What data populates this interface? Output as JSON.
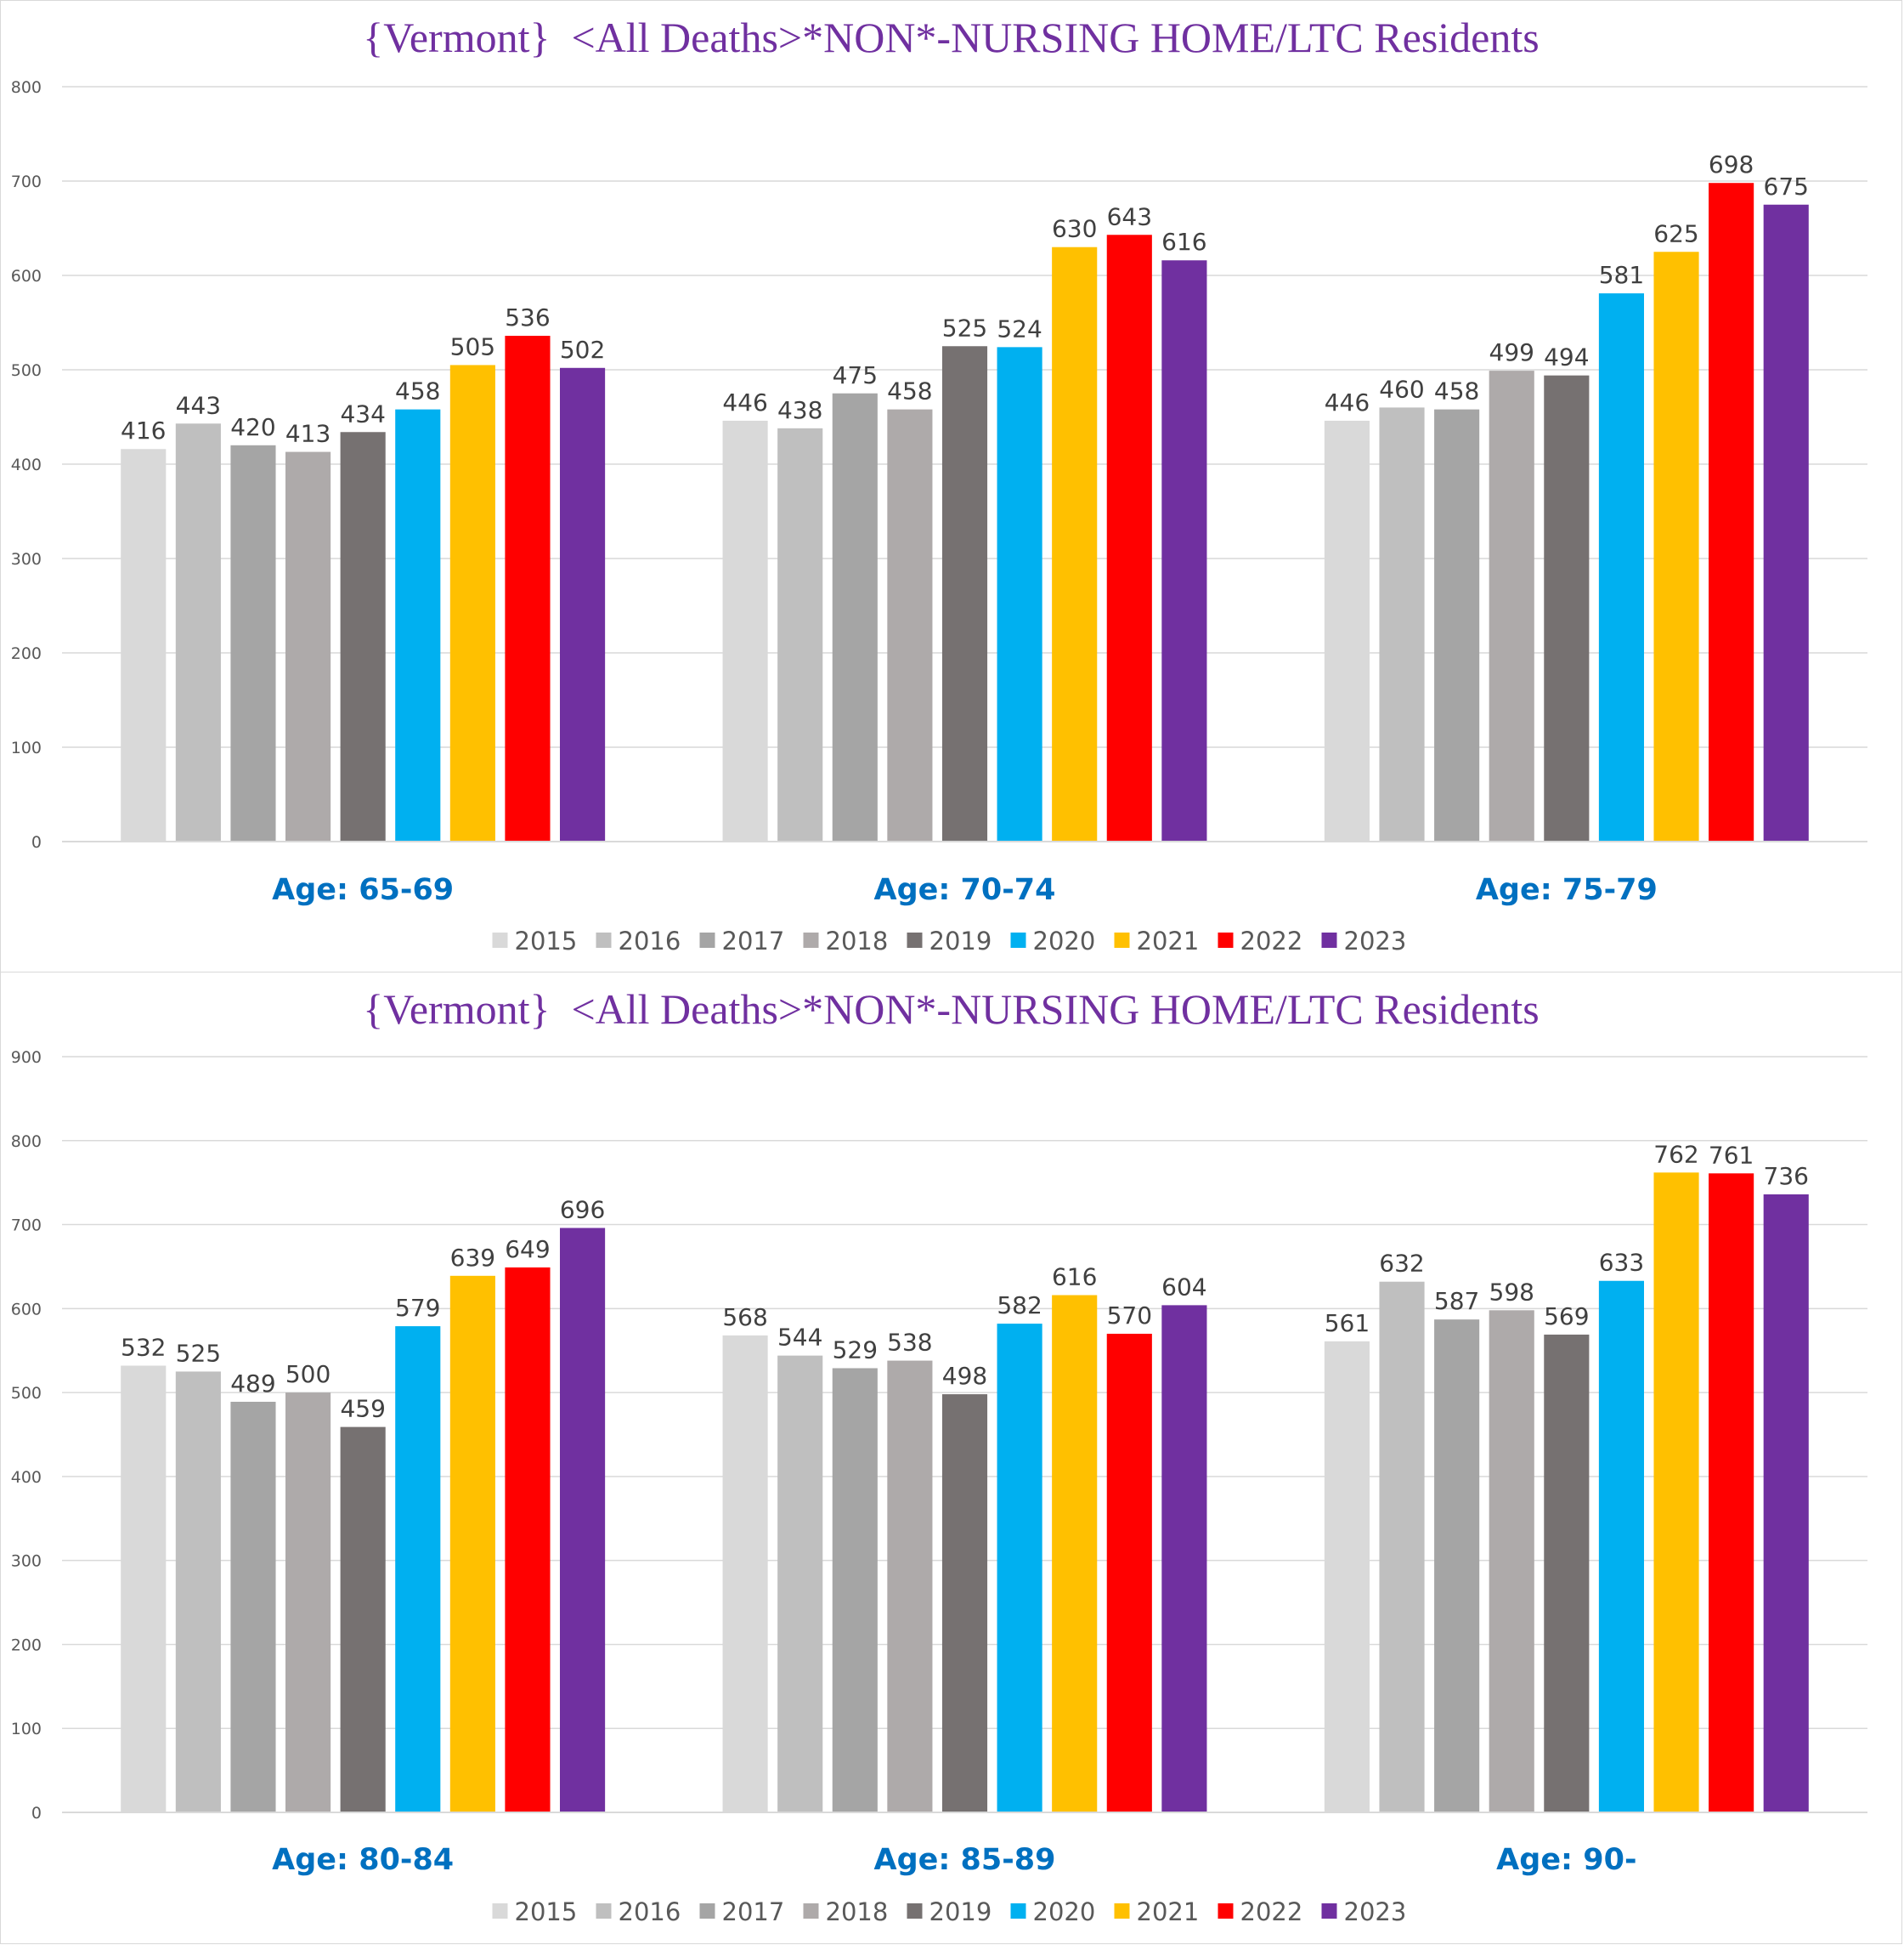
{
  "chart_data": [
    {
      "type": "bar",
      "title": "{Vermont}  <All Deaths>*NON*-NURSING HOME/LTC Residents",
      "xlabel": "",
      "ylabel": "",
      "ylim": [
        0,
        800
      ],
      "yticks": [
        0,
        100,
        200,
        300,
        400,
        500,
        600,
        700,
        800
      ],
      "grid": true,
      "legend_position": "bottom",
      "categories": [
        "Age: 65-69",
        "Age: 70-74",
        "Age: 75-79"
      ],
      "series": [
        {
          "name": "2015",
          "color": "#d9d9d9",
          "values": [
            416,
            446,
            446
          ]
        },
        {
          "name": "2016",
          "color": "#bfbfbf",
          "values": [
            443,
            438,
            460
          ]
        },
        {
          "name": "2017",
          "color": "#a5a5a5",
          "values": [
            420,
            475,
            458
          ]
        },
        {
          "name": "2018",
          "color": "#aeaaaa",
          "values": [
            413,
            458,
            499
          ]
        },
        {
          "name": "2019",
          "color": "#767171",
          "values": [
            434,
            525,
            494
          ]
        },
        {
          "name": "2020",
          "color": "#00b0f0",
          "values": [
            458,
            524,
            581
          ]
        },
        {
          "name": "2021",
          "color": "#ffc000",
          "values": [
            505,
            630,
            625
          ]
        },
        {
          "name": "2022",
          "color": "#ff0000",
          "values": [
            536,
            643,
            698
          ]
        },
        {
          "name": "2023",
          "color": "#7030a0",
          "values": [
            502,
            616,
            675
          ]
        }
      ]
    },
    {
      "type": "bar",
      "title": "{Vermont}  <All Deaths>*NON*-NURSING HOME/LTC Residents",
      "xlabel": "",
      "ylabel": "",
      "ylim": [
        0,
        900
      ],
      "yticks": [
        0,
        100,
        200,
        300,
        400,
        500,
        600,
        700,
        800,
        900
      ],
      "grid": true,
      "legend_position": "bottom",
      "categories": [
        "Age: 80-84",
        "Age: 85-89",
        "Age: 90-"
      ],
      "series": [
        {
          "name": "2015",
          "color": "#d9d9d9",
          "values": [
            532,
            568,
            561
          ]
        },
        {
          "name": "2016",
          "color": "#bfbfbf",
          "values": [
            525,
            544,
            632
          ]
        },
        {
          "name": "2017",
          "color": "#a5a5a5",
          "values": [
            489,
            529,
            587
          ]
        },
        {
          "name": "2018",
          "color": "#aeaaaa",
          "values": [
            500,
            538,
            598
          ]
        },
        {
          "name": "2019",
          "color": "#767171",
          "values": [
            459,
            498,
            569
          ]
        },
        {
          "name": "2020",
          "color": "#00b0f0",
          "values": [
            579,
            582,
            633
          ]
        },
        {
          "name": "2021",
          "color": "#ffc000",
          "values": [
            639,
            616,
            762
          ]
        },
        {
          "name": "2022",
          "color": "#ff0000",
          "values": [
            649,
            570,
            761
          ]
        },
        {
          "name": "2023",
          "color": "#7030a0",
          "values": [
            696,
            604,
            736
          ]
        }
      ]
    }
  ]
}
